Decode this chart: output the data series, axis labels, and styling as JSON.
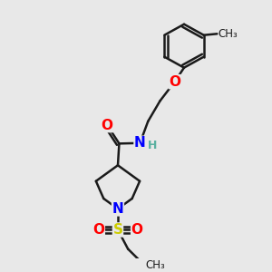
{
  "bg_color": "#e8e8e8",
  "bond_color": "#1a1a1a",
  "bond_width": 1.8,
  "atom_colors": {
    "O": "#ff0000",
    "N": "#0000ff",
    "S": "#cccc00",
    "H": "#5ab0a0",
    "C": "#1a1a1a"
  },
  "font_size_atom": 11,
  "font_size_h": 9,
  "font_size_ch3": 8.5
}
